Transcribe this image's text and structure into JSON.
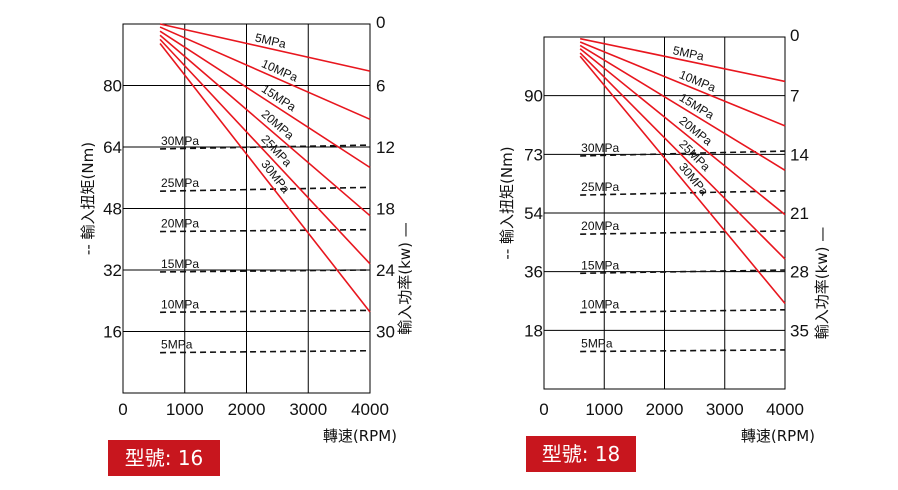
{
  "chart_data": [
    {
      "type": "line",
      "model_label": "型號: 16",
      "xlabel": "轉速(RPM)",
      "ylabel_left": "-- 輸入扭矩(Nm)",
      "ylabel_right": "輸入功率(kw) —",
      "x_ticks": [
        "0",
        "1000",
        "2000",
        "3000",
        "4000"
      ],
      "left_ticks": [
        "80",
        "64",
        "48",
        "32",
        "16"
      ],
      "right_ticks": [
        "0",
        "6",
        "12",
        "18",
        "24",
        "30"
      ],
      "xlim": [
        0,
        4000
      ],
      "torque_lim": [
        0,
        96
      ],
      "power_lim_inverted": [
        0,
        36
      ],
      "power_series": [
        {
          "name": "5MPa",
          "x": [
            600,
            4000
          ],
          "y": [
            0.0,
            4.6
          ]
        },
        {
          "name": "10MPa",
          "x": [
            600,
            4000
          ],
          "y": [
            0.3,
            9.3
          ]
        },
        {
          "name": "15MPa",
          "x": [
            600,
            4000
          ],
          "y": [
            0.7,
            14.0
          ]
        },
        {
          "name": "20MPa",
          "x": [
            600,
            4000
          ],
          "y": [
            1.1,
            18.7
          ]
        },
        {
          "name": "25MPa",
          "x": [
            600,
            4000
          ],
          "y": [
            1.5,
            23.4
          ]
        },
        {
          "name": "30MPa",
          "x": [
            600,
            4000
          ],
          "y": [
            1.9,
            28.1
          ]
        }
      ],
      "torque_series": [
        {
          "name": "30MPa",
          "x": [
            600,
            4000
          ],
          "y": [
            63.5,
            64.5
          ]
        },
        {
          "name": "25MPa",
          "x": [
            600,
            4000
          ],
          "y": [
            52.5,
            53.5
          ]
        },
        {
          "name": "20MPa",
          "x": [
            600,
            4000
          ],
          "y": [
            42.0,
            42.5
          ]
        },
        {
          "name": "15MPa",
          "x": [
            600,
            4000
          ],
          "y": [
            31.5,
            32.0
          ]
        },
        {
          "name": "10MPa",
          "x": [
            600,
            4000
          ],
          "y": [
            21.0,
            21.5
          ]
        },
        {
          "name": "5MPa",
          "x": [
            600,
            4000
          ],
          "y": [
            10.5,
            11.0
          ]
        }
      ]
    },
    {
      "type": "line",
      "model_label": "型號: 18",
      "xlabel": "轉速(RPM)",
      "ylabel_left": "-- 輸入扭矩(Nm)",
      "ylabel_right": "輸入功率(kw) —",
      "x_ticks": [
        "0",
        "1000",
        "2000",
        "3000",
        "4000"
      ],
      "left_ticks": [
        "90",
        "73",
        "54",
        "36",
        "18"
      ],
      "right_ticks": [
        "0",
        "7",
        "14",
        "21",
        "28",
        "35"
      ],
      "xlim": [
        0,
        4000
      ],
      "torque_lim": [
        0,
        108
      ],
      "power_lim_inverted": [
        0,
        42
      ],
      "power_series": [
        {
          "name": "5MPa",
          "x": [
            600,
            4000
          ],
          "y": [
            0.2,
            5.3
          ]
        },
        {
          "name": "10MPa",
          "x": [
            600,
            4000
          ],
          "y": [
            0.6,
            10.6
          ]
        },
        {
          "name": "15MPa",
          "x": [
            600,
            4000
          ],
          "y": [
            1.0,
            15.9
          ]
        },
        {
          "name": "20MPa",
          "x": [
            600,
            4000
          ],
          "y": [
            1.4,
            21.2
          ]
        },
        {
          "name": "25MPa",
          "x": [
            600,
            4000
          ],
          "y": [
            1.9,
            26.5
          ]
        },
        {
          "name": "30MPa",
          "x": [
            600,
            4000
          ],
          "y": [
            2.3,
            31.8
          ]
        }
      ],
      "torque_series": [
        {
          "name": "30MPa",
          "x": [
            600,
            4000
          ],
          "y": [
            71.5,
            73.0
          ]
        },
        {
          "name": "25MPa",
          "x": [
            600,
            4000
          ],
          "y": [
            59.5,
            60.8
          ]
        },
        {
          "name": "20MPa",
          "x": [
            600,
            4000
          ],
          "y": [
            47.5,
            48.5
          ]
        },
        {
          "name": "15MPa",
          "x": [
            600,
            4000
          ],
          "y": [
            35.5,
            36.5
          ]
        },
        {
          "name": "10MPa",
          "x": [
            600,
            4000
          ],
          "y": [
            23.5,
            24.3
          ]
        },
        {
          "name": "5MPa",
          "x": [
            600,
            4000
          ],
          "y": [
            11.5,
            12.0
          ]
        }
      ]
    }
  ],
  "colors": {
    "power_line": "#e8161e",
    "torque_line": "#111111",
    "grid": "#000000",
    "badge_bg": "#c8161e",
    "badge_text": "#ffffff"
  }
}
